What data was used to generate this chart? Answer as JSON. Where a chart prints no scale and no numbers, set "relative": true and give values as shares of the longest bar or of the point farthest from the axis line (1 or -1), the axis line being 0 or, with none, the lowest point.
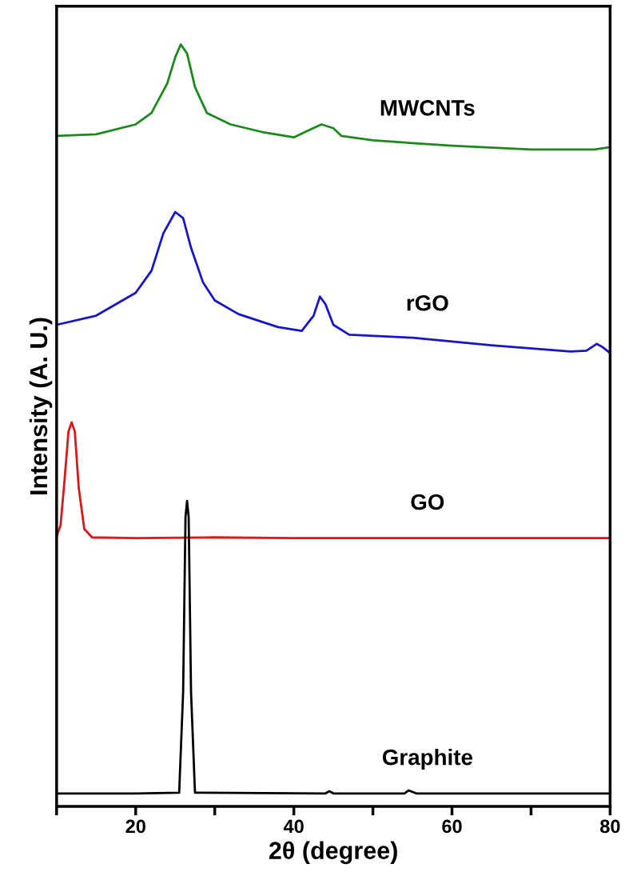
{
  "chart_data": {
    "type": "line",
    "xlabel": "2θ (degree)",
    "ylabel": "Intensity (A. U.)",
    "relative": true,
    "xlim": [
      10,
      80
    ],
    "xticks": [
      {
        "value": 10,
        "label": null
      },
      20,
      {
        "value": 30,
        "label": null
      },
      40,
      {
        "value": 50,
        "label": null
      },
      60,
      {
        "value": 70,
        "label": null
      },
      80
    ],
    "tick_labels": "x",
    "grid": false,
    "legend": false,
    "marker": "none",
    "line_style": "solid",
    "series": [
      {
        "name": "MWCNTs",
        "color": "#1a8a1a",
        "x": [
          10,
          15,
          20,
          22,
          24,
          25,
          25.7,
          26.5,
          27.5,
          29,
          32,
          36,
          40,
          42,
          43.5,
          45,
          46,
          50,
          60,
          70,
          78,
          80
        ],
        "values": [
          0.88,
          0.882,
          0.895,
          0.91,
          0.949,
          0.983,
          1.0,
          0.988,
          0.944,
          0.91,
          0.895,
          0.885,
          0.878,
          0.888,
          0.895,
          0.89,
          0.88,
          0.874,
          0.867,
          0.862,
          0.862,
          0.865
        ]
      },
      {
        "name": "rGO",
        "color": "#1515d0",
        "x": [
          10,
          15,
          20,
          22,
          23.5,
          25,
          26,
          27,
          28.5,
          30,
          33,
          38,
          41,
          42.5,
          43.3,
          44,
          45,
          47,
          55,
          65,
          75,
          77,
          78.3,
          79,
          80
        ],
        "values": [
          0.632,
          0.644,
          0.674,
          0.703,
          0.752,
          0.78,
          0.772,
          0.733,
          0.688,
          0.664,
          0.646,
          0.629,
          0.624,
          0.644,
          0.669,
          0.659,
          0.632,
          0.619,
          0.615,
          0.605,
          0.597,
          0.598,
          0.607,
          0.603,
          0.595
        ]
      },
      {
        "name": "GO",
        "color": "#e01515",
        "x": [
          10,
          10.5,
          11,
          11.5,
          11.9,
          12.3,
          12.8,
          13.5,
          14.5,
          20,
          30,
          40,
          60,
          80
        ],
        "values": [
          0.354,
          0.369,
          0.428,
          0.492,
          0.504,
          0.492,
          0.418,
          0.364,
          0.353,
          0.352,
          0.353,
          0.352,
          0.352,
          0.352
        ]
      },
      {
        "name": "Graphite",
        "color": "#000000",
        "x": [
          10,
          20,
          25.5,
          26.0,
          26.3,
          26.5,
          26.7,
          27.0,
          27.5,
          44,
          44.5,
          45,
          54,
          54.5,
          55.5,
          80
        ],
        "values": [
          0.017,
          0.017,
          0.018,
          0.15,
          0.38,
          0.401,
          0.38,
          0.15,
          0.018,
          0.017,
          0.02,
          0.017,
          0.017,
          0.021,
          0.017,
          0.017
        ]
      }
    ]
  }
}
